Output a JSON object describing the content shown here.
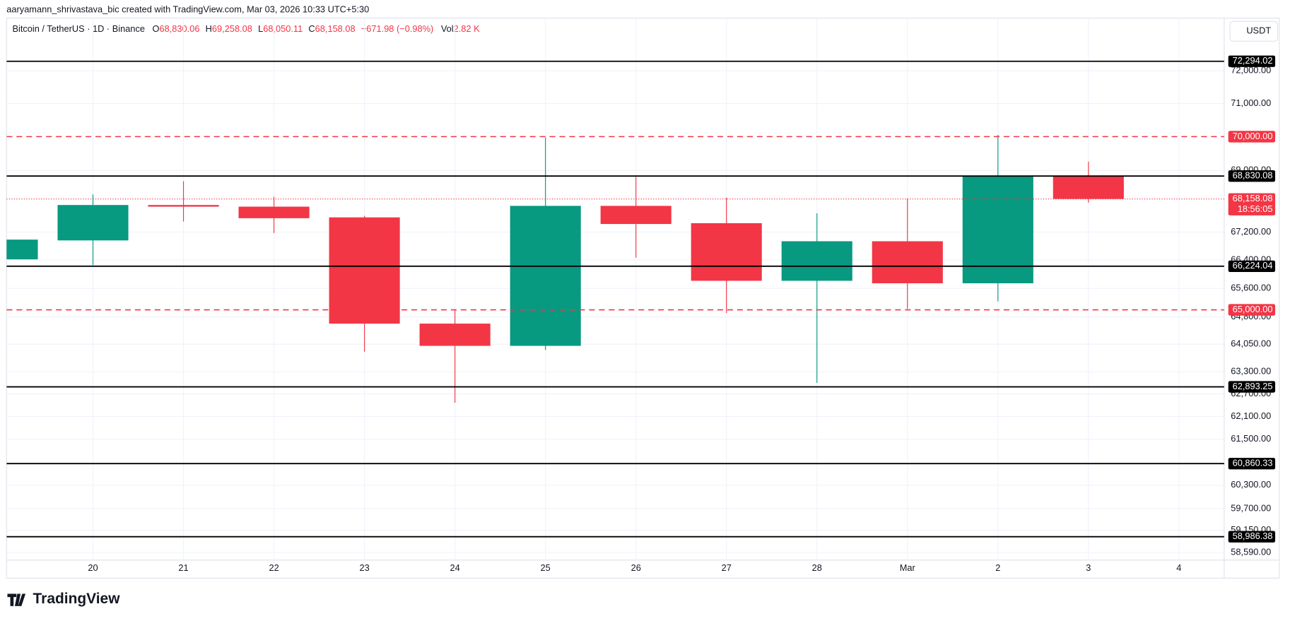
{
  "header": {
    "credit": "aaryamann_shrivastava_bic created with TradingView.com, Mar 03, 2026 10:33 UTC+5:30",
    "symbol": "Bitcoin / TetherUS · 1D · Binance",
    "o_label": "O",
    "o_value": "68,830.06",
    "h_label": "H",
    "h_value": "69,258.08",
    "l_label": "L",
    "l_value": "68,050.11",
    "c_label": "C",
    "c_value": "68,158.08",
    "change": "−671.98 (−0.98%)",
    "vol_label": "Vol",
    "vol_value": "2.82 K",
    "currency": "USDT"
  },
  "footer": {
    "logo": "TradingView"
  },
  "chart_data": {
    "type": "candlestick",
    "log_scale": true,
    "grid": true,
    "up_color": "#089981",
    "down_color": "#f23645",
    "categories": [
      null,
      "20",
      "21",
      "22",
      "23",
      "24",
      "25",
      "26",
      "27",
      "28",
      "Mar",
      "2",
      "3",
      "4"
    ],
    "open": [
      66419,
      66960,
      67982,
      67934,
      67623,
      64618,
      64006,
      67957,
      67456,
      65813,
      66936,
      65743,
      68830.06,
      null
    ],
    "high": [
      66983,
      68293,
      68679,
      68221,
      67670,
      64983,
      69980,
      68801,
      68198,
      67742,
      68173,
      70050,
      69258.08,
      null
    ],
    "low": [
      66419,
      66255,
      67504,
      67172,
      63848,
      62469,
      63894,
      66465,
      64914,
      62999,
      65029,
      65236,
      68050.11,
      null
    ],
    "close": [
      66983,
      67982,
      67934,
      67599,
      64618,
      64006,
      67957,
      67432,
      65813,
      66936,
      65743,
      68830,
      68158.08,
      null
    ],
    "ylim": [
      58400,
      73640
    ],
    "yticks": [
      {
        "value": 72000,
        "label": "72,000.00"
      },
      {
        "value": 71000,
        "label": "71,000.00"
      },
      {
        "value": 69000,
        "label": "69,000.00"
      },
      {
        "value": 67200,
        "label": "67,200.00"
      },
      {
        "value": 66400,
        "label": "66,400.00"
      },
      {
        "value": 65600,
        "label": "65,600.00"
      },
      {
        "value": 64800,
        "label": "64,800.00"
      },
      {
        "value": 64050,
        "label": "64,050.00"
      },
      {
        "value": 63300,
        "label": "63,300.00"
      },
      {
        "value": 62700,
        "label": "62,700.00"
      },
      {
        "value": 62100,
        "label": "62,100.00"
      },
      {
        "value": 61500,
        "label": "61,500.00"
      },
      {
        "value": 60300,
        "label": "60,300.00"
      },
      {
        "value": 59700,
        "label": "59,700.00"
      },
      {
        "value": 59150,
        "label": "59,150.00"
      },
      {
        "value": 58590,
        "label": "58,590.00"
      }
    ],
    "levels": [
      {
        "value": 72294.02,
        "label": "72,294.02",
        "style": "solid"
      },
      {
        "value": 70000,
        "label": "70,000.00",
        "style": "dashed"
      },
      {
        "value": 68830.08,
        "label": "68,830.08",
        "style": "solid"
      },
      {
        "value": 66224.04,
        "label": "66,224.04",
        "style": "solid"
      },
      {
        "value": 65000,
        "label": "65,000.00",
        "style": "dashed"
      },
      {
        "value": 62893.25,
        "label": "62,893.25",
        "style": "solid"
      },
      {
        "value": 60860.33,
        "label": "60,860.33",
        "style": "solid"
      },
      {
        "value": 58986.38,
        "label": "58,986.38",
        "style": "solid"
      }
    ],
    "current": {
      "value": 68158.08,
      "label": "68,158.08",
      "countdown": "18:56:05"
    }
  }
}
